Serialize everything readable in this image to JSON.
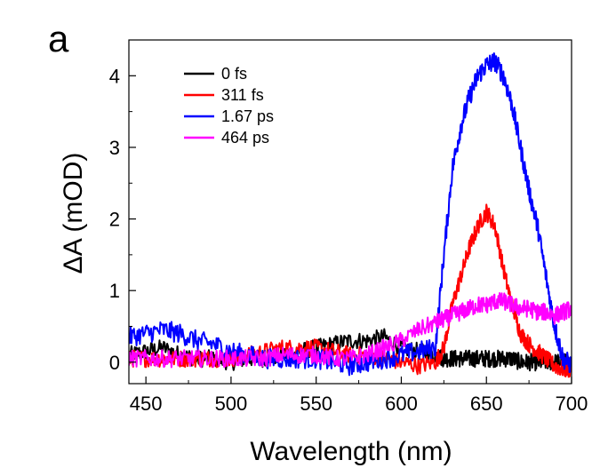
{
  "panel_label": "a",
  "chart_data": {
    "type": "line",
    "xlabel": "Wavelength (nm)",
    "ylabel": "ΔA (mOD)",
    "xlim": [
      440,
      700
    ],
    "ylim": [
      -0.3,
      4.5
    ],
    "x_ticks": [
      450,
      500,
      550,
      600,
      650,
      700
    ],
    "y_ticks": [
      0,
      1,
      2,
      3,
      4
    ],
    "grid": false,
    "legend_position": "top-left",
    "x": [
      440,
      450,
      460,
      470,
      480,
      490,
      500,
      510,
      520,
      530,
      540,
      550,
      560,
      570,
      580,
      590,
      600,
      610,
      620,
      625,
      630,
      635,
      640,
      645,
      650,
      655,
      660,
      665,
      670,
      675,
      680,
      685,
      690,
      695,
      700
    ],
    "series": [
      {
        "name": "0 fs",
        "color": "#000000",
        "values": [
          0.1,
          0.15,
          0.2,
          0.1,
          0.05,
          0.05,
          0.0,
          0.05,
          0.05,
          0.1,
          0.15,
          0.2,
          0.25,
          0.3,
          0.3,
          0.35,
          0.2,
          0.15,
          0.1,
          0.05,
          0.05,
          0.05,
          0.05,
          0.05,
          0.05,
          0.05,
          0.05,
          0.05,
          0.0,
          0.0,
          0.0,
          0.0,
          0.0,
          0.0,
          0.0
        ]
      },
      {
        "name": "311 fs",
        "color": "#ff0000",
        "values": [
          0.05,
          0.05,
          0.05,
          0.05,
          0.05,
          0.05,
          0.05,
          0.1,
          0.15,
          0.2,
          0.2,
          0.2,
          0.15,
          0.1,
          0.1,
          0.05,
          0.0,
          -0.05,
          0.0,
          0.2,
          0.8,
          1.2,
          1.6,
          1.9,
          2.1,
          1.9,
          1.3,
          0.8,
          0.4,
          0.25,
          0.15,
          0.05,
          -0.05,
          -0.1,
          -0.1
        ]
      },
      {
        "name": "1.67 ps",
        "color": "#0000ff",
        "values": [
          0.35,
          0.4,
          0.45,
          0.4,
          0.3,
          0.25,
          0.15,
          0.1,
          0.05,
          0.05,
          0.05,
          0.05,
          0.0,
          -0.05,
          0.0,
          0.05,
          0.1,
          0.15,
          0.2,
          1.5,
          2.7,
          3.3,
          3.7,
          4.0,
          4.15,
          4.2,
          4.0,
          3.6,
          3.0,
          2.4,
          1.9,
          1.2,
          0.5,
          0.05,
          -0.05
        ]
      },
      {
        "name": "464 ps",
        "color": "#ff00ff",
        "values": [
          0.05,
          0.05,
          0.05,
          0.05,
          0.05,
          0.05,
          0.05,
          0.05,
          0.05,
          0.1,
          0.1,
          0.1,
          0.05,
          0.05,
          0.1,
          0.2,
          0.3,
          0.45,
          0.55,
          0.6,
          0.65,
          0.7,
          0.75,
          0.8,
          0.8,
          0.85,
          0.85,
          0.8,
          0.75,
          0.75,
          0.7,
          0.7,
          0.65,
          0.7,
          0.75
        ]
      }
    ]
  }
}
